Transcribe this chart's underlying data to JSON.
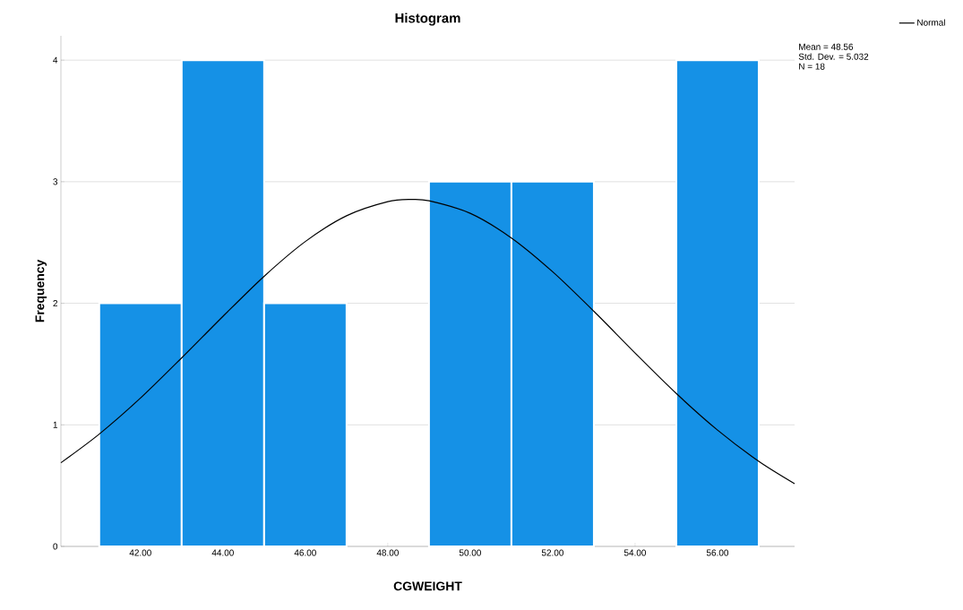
{
  "chart_data": {
    "type": "histogram",
    "title": "Histogram",
    "xlabel": "CGWEIGHT",
    "ylabel": "Frequency",
    "bins": [
      41,
      43,
      45,
      47,
      49,
      51,
      53,
      55,
      57
    ],
    "values": [
      2,
      4,
      2,
      0,
      3,
      3,
      0,
      4
    ],
    "color": "#1591e6",
    "series": [
      {
        "type": "line",
        "name": "Normal",
        "color": "#000000",
        "x": [
          40.07,
          41,
          42,
          43,
          44,
          45,
          46,
          47,
          48,
          48.56,
          49,
          50,
          51,
          52,
          53,
          54,
          55,
          56,
          57,
          57.87
        ],
        "values": [
          0.688,
          0.924,
          1.22,
          1.551,
          1.892,
          2.222,
          2.508,
          2.72,
          2.836,
          2.854,
          2.843,
          2.74,
          2.537,
          2.259,
          1.934,
          1.591,
          1.258,
          0.957,
          0.7,
          0.516
        ]
      }
    ],
    "xlim": [
      40.07,
      57.87
    ],
    "ylim": [
      0,
      4.2
    ],
    "xticks": [
      {
        "value": 42,
        "label": "42.00"
      },
      {
        "value": 44,
        "label": "44.00"
      },
      {
        "value": 46,
        "label": "46.00"
      },
      {
        "value": 48,
        "label": "48.00"
      },
      {
        "value": 50,
        "label": "50.00"
      },
      {
        "value": 52,
        "label": "52.00"
      },
      {
        "value": 54,
        "label": "54.00"
      },
      {
        "value": 56,
        "label": "56.00"
      }
    ],
    "yticks": [
      0,
      1,
      2,
      3,
      4
    ],
    "grid": "y",
    "legend": "top right",
    "marker": "none",
    "line_style": "solid",
    "annotations": [
      "Mean = 48.56",
      "Std. Dev. = 5.032",
      "N = 18"
    ]
  }
}
